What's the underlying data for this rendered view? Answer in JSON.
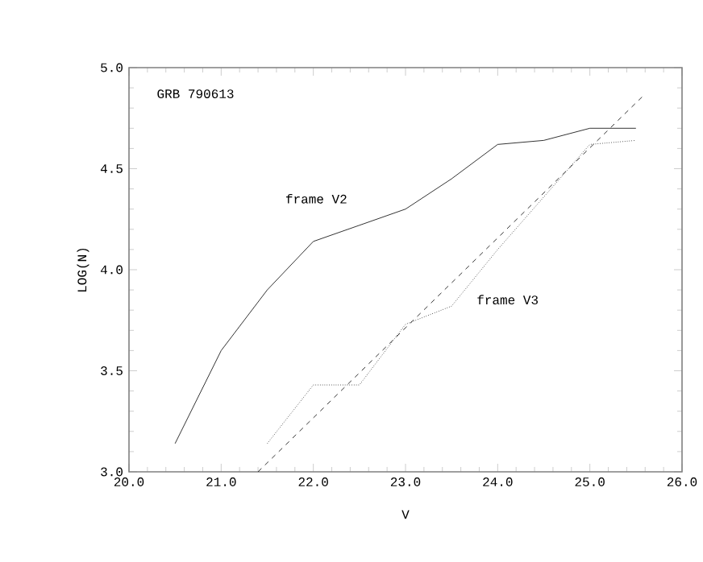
{
  "chart_data": {
    "type": "line",
    "xlabel": "V",
    "ylabel": "LOG(N)",
    "x": [
      20.5,
      21.0,
      21.5,
      22.0,
      22.5,
      23.0,
      23.5,
      24.0,
      24.5,
      25.0,
      25.5
    ],
    "series": [
      {
        "name": "frame V2",
        "color": "#000000",
        "line_style": "solid",
        "values": [
          3.14,
          3.6,
          3.9,
          4.14,
          4.22,
          4.3,
          4.45,
          4.62,
          4.64,
          4.7,
          4.7
        ]
      },
      {
        "name": "frame V3",
        "color": "#000000",
        "line_style": "dotted",
        "x": [
          21.5,
          22.0,
          22.5,
          23.0,
          23.5,
          24.0,
          24.5,
          25.0,
          25.5
        ],
        "values": [
          3.14,
          3.43,
          3.43,
          3.73,
          3.82,
          4.1,
          4.36,
          4.62,
          4.64
        ]
      },
      {
        "color": "#000000",
        "line_style": "dashed",
        "x": [
          21.4,
          25.6
        ],
        "values": [
          3.0,
          4.87
        ]
      }
    ],
    "xlim": [
      20,
      26
    ],
    "ylim": [
      3.0,
      5.0
    ],
    "xticks": [
      {
        "value": 20,
        "label": "20.0"
      },
      {
        "value": 21,
        "label": "21.0"
      },
      {
        "value": 22,
        "label": "22.0"
      },
      {
        "value": 23,
        "label": "23.0"
      },
      {
        "value": 24,
        "label": "24.0"
      },
      {
        "value": 25,
        "label": "25.0"
      },
      {
        "value": 26,
        "label": "26.0"
      }
    ],
    "yticks": [
      {
        "value": 3,
        "label": "3.0"
      },
      {
        "value": 3.5,
        "label": "3.5"
      },
      {
        "value": 4,
        "label": "4.0"
      },
      {
        "value": 4.5,
        "label": "4.5"
      },
      {
        "value": 5,
        "label": "5.0"
      }
    ],
    "grid": false,
    "annotations": [
      "GRB 790613"
    ]
  }
}
